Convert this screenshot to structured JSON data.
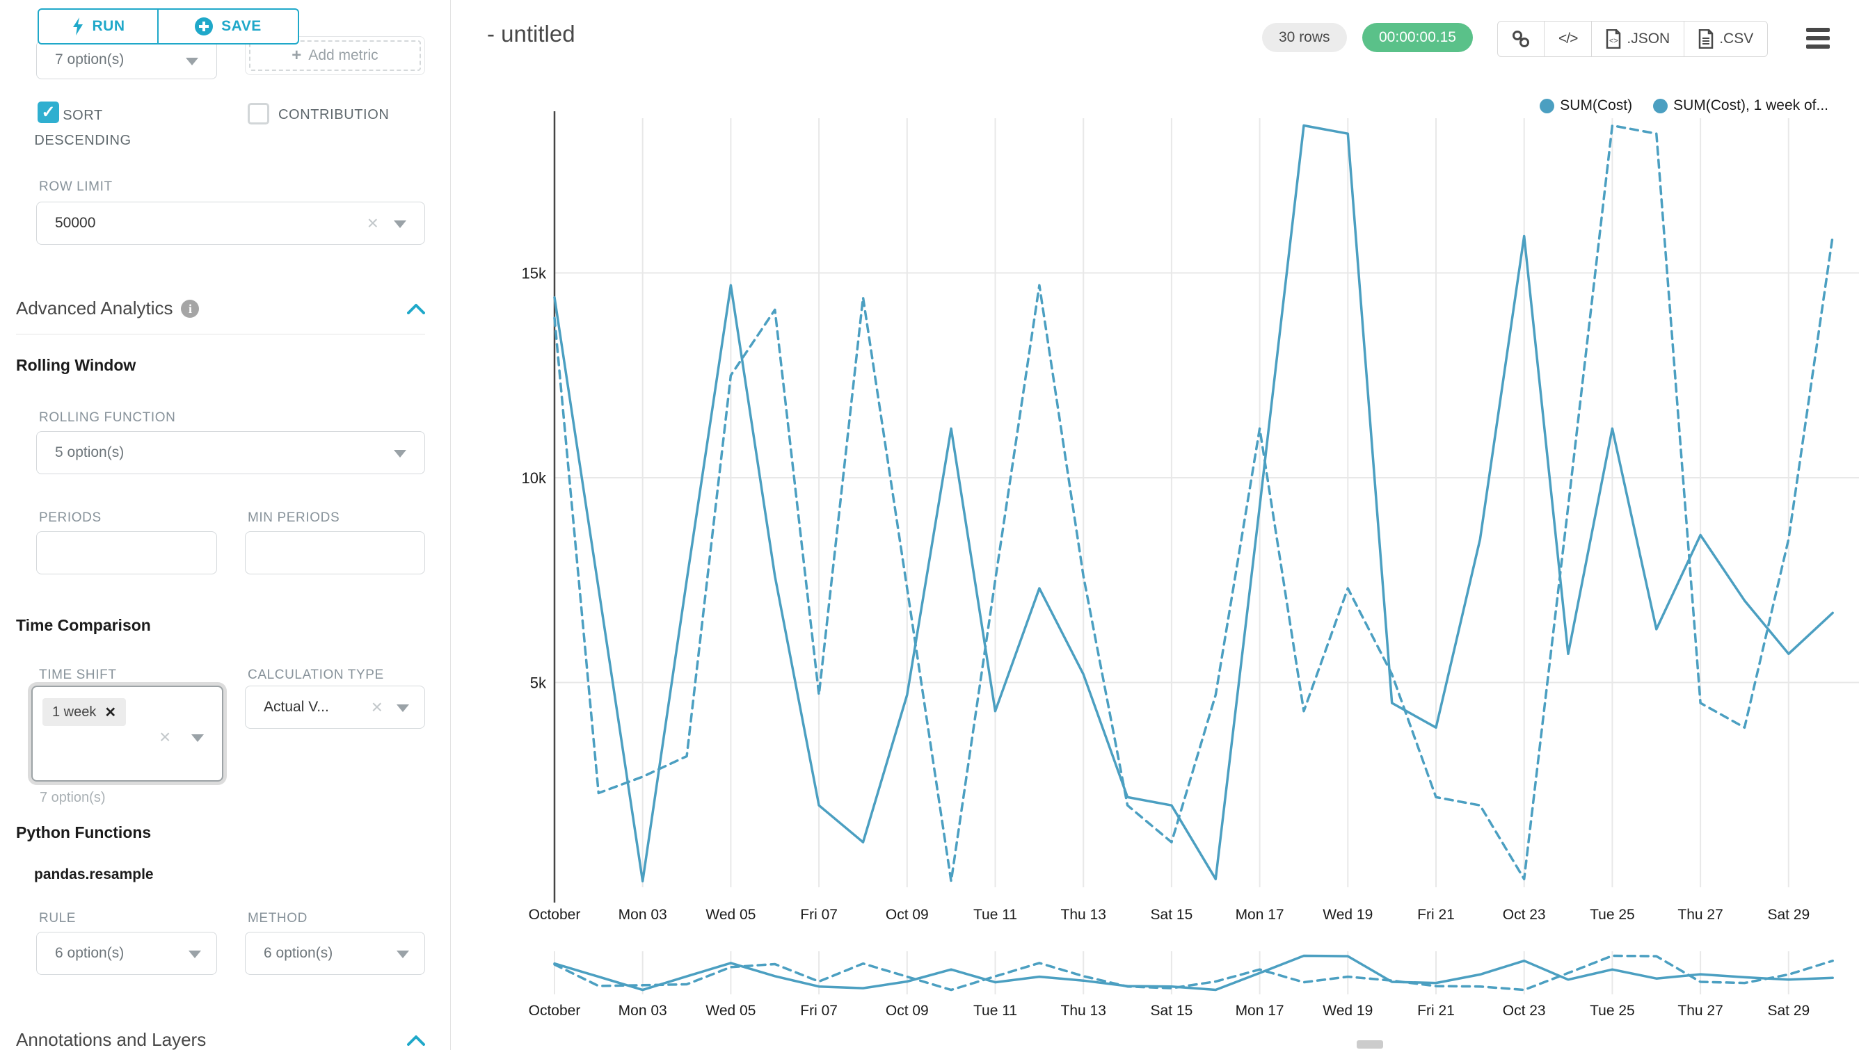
{
  "panel": {
    "run_button": "RUN",
    "save_button": "SAVE",
    "groupby_value": "7 option(s)",
    "add_metric_button": "Add metric",
    "sort_descending": {
      "label": "SORT DESCENDING",
      "checked": true
    },
    "contribution": {
      "label": "CONTRIBUTION",
      "checked": false
    },
    "row_limit": {
      "label": "ROW LIMIT",
      "value": "50000"
    },
    "advanced_analytics_title": "Advanced Analytics",
    "rolling_window": {
      "title": "Rolling Window",
      "rolling_function_label": "ROLLING FUNCTION",
      "rolling_function_value": "5 option(s)",
      "periods_label": "PERIODS",
      "min_periods_label": "MIN PERIODS"
    },
    "time_comparison": {
      "title": "Time Comparison",
      "time_shift_label": "TIME SHIFT",
      "time_shift_tag": "1 week",
      "time_shift_helper": "7 option(s)",
      "calculation_type_label": "CALCULATION TYPE",
      "calculation_type_value": "Actual V..."
    },
    "python_functions": {
      "title": "Python Functions",
      "subtitle": "pandas.resample",
      "rule_label": "RULE",
      "rule_value": "6 option(s)",
      "method_label": "METHOD",
      "method_value": "6 option(s)"
    },
    "annotations_title": "Annotations and Layers"
  },
  "header": {
    "title": "- untitled",
    "rows_badge": "30 rows",
    "timer_badge": "00:00:00.15",
    "export_json": ".JSON",
    "export_csv": ".CSV"
  },
  "colors": {
    "accent": "#1fa8c9",
    "series_line": "#4b9fc1",
    "timer_green": "#5ac189",
    "grid": "#e8e8e8",
    "axis": "#444444"
  },
  "chart_data": {
    "type": "line",
    "x_unit": "day",
    "x_start": "October 01",
    "x_end": "October 30",
    "x_tick_labels": [
      "October",
      "Mon 03",
      "Wed 05",
      "Fri 07",
      "Oct 09",
      "Tue 11",
      "Thu 13",
      "Sat 15",
      "Mon 17",
      "Wed 19",
      "Fri 21",
      "Oct 23",
      "Tue 25",
      "Thu 27",
      "Sat 29"
    ],
    "y_ticks": [
      5000,
      10000,
      15000
    ],
    "y_tick_labels": [
      "5k",
      "10k",
      "15k"
    ],
    "ylim": [
      0,
      18800
    ],
    "grid": true,
    "legend_position": "top-right",
    "legend": [
      "SUM(Cost)",
      "SUM(Cost), 1 week of..."
    ],
    "series": [
      {
        "name": "SUM(Cost)",
        "style": "solid",
        "values": [
          14400,
          7300,
          150,
          7500,
          14700,
          7600,
          2000,
          1100,
          4700,
          11200,
          4300,
          7300,
          5200,
          2200,
          2000,
          200,
          9300,
          18600,
          18400,
          4500,
          3900,
          8500,
          15900,
          5700,
          11200,
          6300,
          8600,
          7000,
          5700,
          6700
        ]
      },
      {
        "name": "SUM(Cost), 1 week offset",
        "style": "dashed",
        "values": [
          13900,
          2300,
          2700,
          3200,
          12500,
          14100,
          4700,
          14400,
          7300,
          150,
          7500,
          14700,
          7600,
          2000,
          1100,
          4700,
          11200,
          4300,
          7300,
          5200,
          2200,
          2000,
          200,
          9300,
          18600,
          18400,
          4500,
          3900,
          8500,
          15900
        ]
      }
    ],
    "has_mini_preview": true
  }
}
